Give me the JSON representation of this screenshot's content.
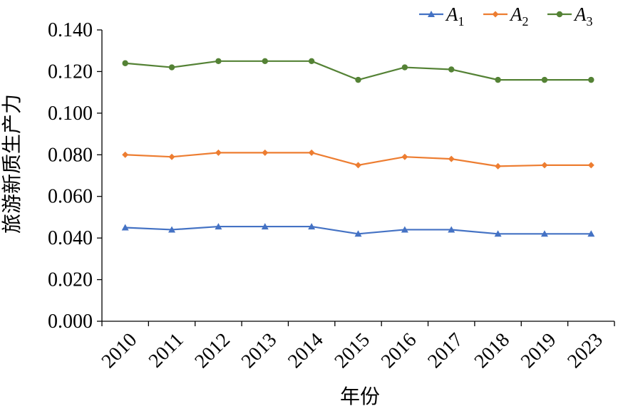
{
  "chart_data": {
    "type": "line",
    "title": "",
    "xlabel": "年份",
    "ylabel": "旅游新质生产力",
    "categories": [
      "2010",
      "2011",
      "2012",
      "2013",
      "2014",
      "2015",
      "2016",
      "2017",
      "2018",
      "2019",
      "2023"
    ],
    "ylim": [
      0,
      0.14
    ],
    "yticks": [
      "0.000",
      "0.020",
      "0.040",
      "0.060",
      "0.080",
      "0.100",
      "0.120",
      "0.140"
    ],
    "legend_position": "top-right",
    "series": [
      {
        "name": "A1",
        "label_main": "A",
        "label_sub": "1",
        "marker": "triangle",
        "color": "#4472C4",
        "values": [
          0.045,
          0.044,
          0.0455,
          0.0455,
          0.0455,
          0.042,
          0.044,
          0.044,
          0.042,
          0.042,
          0.042
        ]
      },
      {
        "name": "A2",
        "label_main": "A",
        "label_sub": "2",
        "marker": "diamond",
        "color": "#ED7D31",
        "values": [
          0.08,
          0.079,
          0.081,
          0.081,
          0.081,
          0.075,
          0.079,
          0.078,
          0.0745,
          0.075,
          0.075
        ]
      },
      {
        "name": "A3",
        "label_main": "A",
        "label_sub": "3",
        "marker": "circle",
        "color": "#548235",
        "values": [
          0.124,
          0.122,
          0.125,
          0.125,
          0.125,
          0.116,
          0.122,
          0.121,
          0.116,
          0.116,
          0.116
        ]
      }
    ]
  }
}
